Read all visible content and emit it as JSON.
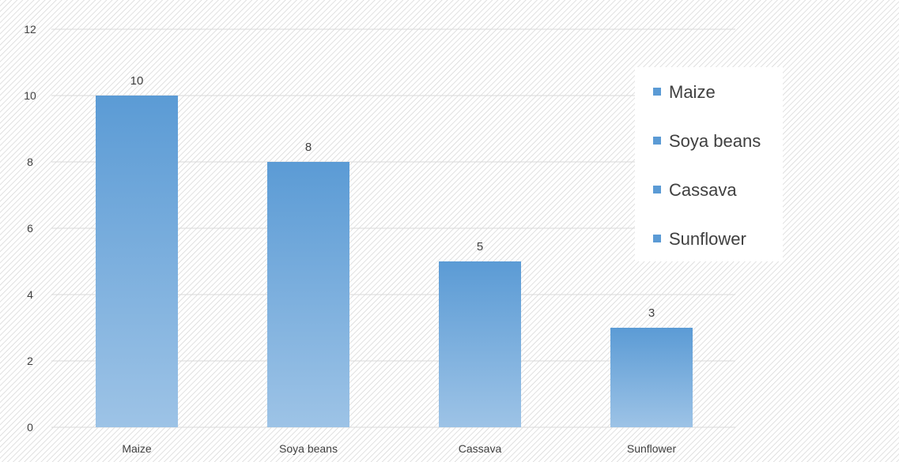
{
  "chart_data": {
    "type": "bar",
    "categories": [
      "Maize",
      "Soya beans",
      "Cassava",
      "Sunflower"
    ],
    "values": [
      10,
      8,
      5,
      3
    ],
    "data_labels": [
      "10",
      "8",
      "5",
      "3"
    ],
    "yticks": [
      "0",
      "2",
      "4",
      "6",
      "8",
      "10",
      "12"
    ],
    "ylim": [
      0,
      12
    ],
    "grid": true,
    "legend": {
      "placement": "right",
      "entries": [
        "Maize",
        "Soya beans",
        "Cassava",
        "Sunflower"
      ]
    },
    "colors": {
      "bar_top": "#5b9bd5",
      "bar_bottom": "#9dc3e6",
      "legend_marker": "#5b9bd5",
      "grid": "#d9d9d9",
      "text": "#404040"
    }
  }
}
